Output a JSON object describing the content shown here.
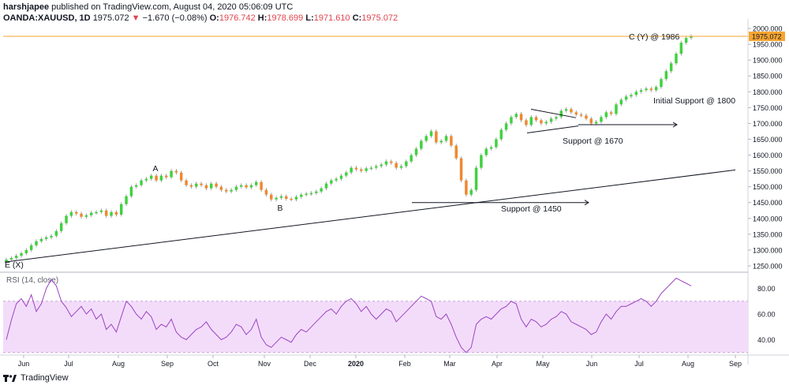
{
  "header": {
    "author": "harshjapee",
    "published_line": "published on TradingView.com, August 04, 2020 05:06:09 UTC",
    "symbol": "OANDA:XAUUSD, 1D",
    "last": "1975.072",
    "change": "−1.670 (−0.08%)",
    "change_arrow": "▼",
    "o_label": "O:",
    "o": "1976.742",
    "h_label": "H:",
    "h": "1978.699",
    "l_label": "L:",
    "l": "1971.610",
    "c_label": "C:",
    "c": "1975.072"
  },
  "footer": {
    "brand": "TradingView"
  },
  "colors": {
    "up": "#3fd13f",
    "down": "#f0872f",
    "rsi_line": "#9b44c1",
    "rsi_band": "#f3dcfa",
    "price_line": "#f7a531",
    "price_badge": "#f7a531"
  },
  "chart_data": [
    {
      "type": "candlestick",
      "title": "OANDA:XAUUSD, 1D",
      "ylim": [
        1230,
        2020
      ],
      "y_ticks": [
        "1250.000",
        "1300.000",
        "1350.000",
        "1400.000",
        "1450.000",
        "1500.000",
        "1550.000",
        "1600.000",
        "1650.000",
        "1700.000",
        "1750.000",
        "1800.000",
        "1850.000",
        "1900.000",
        "1950.000",
        "2000.000"
      ],
      "price_badge": "1975.072",
      "x_ticks": [
        "Jun",
        "Jul",
        "Aug",
        "Sep",
        "Oct",
        "Nov",
        "Dec",
        "2020",
        "Feb",
        "Mar",
        "Apr",
        "May",
        "Jun",
        "Jul",
        "Aug",
        "Sep"
      ],
      "x_tick_bold": "2020",
      "closes": [
        1270,
        1275,
        1282,
        1290,
        1300,
        1315,
        1328,
        1335,
        1340,
        1345,
        1360,
        1385,
        1408,
        1420,
        1415,
        1405,
        1410,
        1418,
        1420,
        1425,
        1408,
        1420,
        1412,
        1445,
        1470,
        1500,
        1505,
        1520,
        1525,
        1535,
        1520,
        1535,
        1530,
        1550,
        1545,
        1520,
        1505,
        1500,
        1510,
        1505,
        1495,
        1510,
        1500,
        1490,
        1485,
        1490,
        1500,
        1505,
        1498,
        1505,
        1515,
        1490,
        1475,
        1460,
        1465,
        1470,
        1462,
        1460,
        1468,
        1475,
        1478,
        1480,
        1485,
        1495,
        1510,
        1520,
        1525,
        1535,
        1545,
        1560,
        1555,
        1550,
        1558,
        1560,
        1565,
        1570,
        1580,
        1575,
        1560,
        1565,
        1580,
        1600,
        1620,
        1645,
        1660,
        1675,
        1640,
        1645,
        1660,
        1630,
        1590,
        1520,
        1475,
        1490,
        1560,
        1600,
        1620,
        1625,
        1650,
        1680,
        1700,
        1720,
        1730,
        1710,
        1695,
        1720,
        1710,
        1700,
        1705,
        1715,
        1720,
        1740,
        1745,
        1735,
        1728,
        1725,
        1715,
        1700,
        1705,
        1720,
        1735,
        1730,
        1760,
        1775,
        1785,
        1790,
        1800,
        1805,
        1810,
        1805,
        1815,
        1840,
        1865,
        1890,
        1920,
        1955,
        1970,
        1975
      ],
      "annotations": [
        {
          "text": "C (Y) @ 1986"
        },
        {
          "text": "A"
        },
        {
          "text": "B"
        },
        {
          "text": "E (X)"
        },
        {
          "text": "Initial Support @ 1800"
        },
        {
          "text": "Support @ 1670"
        },
        {
          "text": "Support @ 1450"
        }
      ]
    },
    {
      "type": "line",
      "title": "RSI (14, close)",
      "ylim": [
        28,
        92
      ],
      "y_ticks": [
        "40.00",
        "60.00",
        "80.00"
      ],
      "band": [
        30,
        70
      ],
      "values": [
        40,
        55,
        68,
        72,
        66,
        75,
        62,
        68,
        80,
        87,
        82,
        70,
        65,
        58,
        62,
        66,
        60,
        64,
        56,
        60,
        48,
        52,
        46,
        58,
        70,
        66,
        60,
        56,
        62,
        58,
        48,
        52,
        50,
        56,
        46,
        42,
        40,
        44,
        48,
        50,
        54,
        48,
        44,
        40,
        42,
        46,
        52,
        50,
        44,
        48,
        56,
        42,
        36,
        34,
        38,
        42,
        40,
        38,
        44,
        48,
        46,
        50,
        54,
        58,
        62,
        64,
        60,
        66,
        70,
        72,
        68,
        62,
        66,
        60,
        56,
        60,
        64,
        62,
        54,
        58,
        62,
        66,
        70,
        74,
        72,
        70,
        58,
        56,
        60,
        52,
        42,
        34,
        30,
        34,
        52,
        56,
        58,
        56,
        60,
        64,
        66,
        70,
        68,
        56,
        50,
        56,
        54,
        50,
        52,
        56,
        58,
        62,
        60,
        54,
        52,
        50,
        48,
        44,
        46,
        54,
        60,
        56,
        62,
        66,
        66,
        68,
        70,
        72,
        70,
        66,
        70,
        76,
        80,
        84,
        88,
        86,
        84,
        82
      ]
    }
  ]
}
